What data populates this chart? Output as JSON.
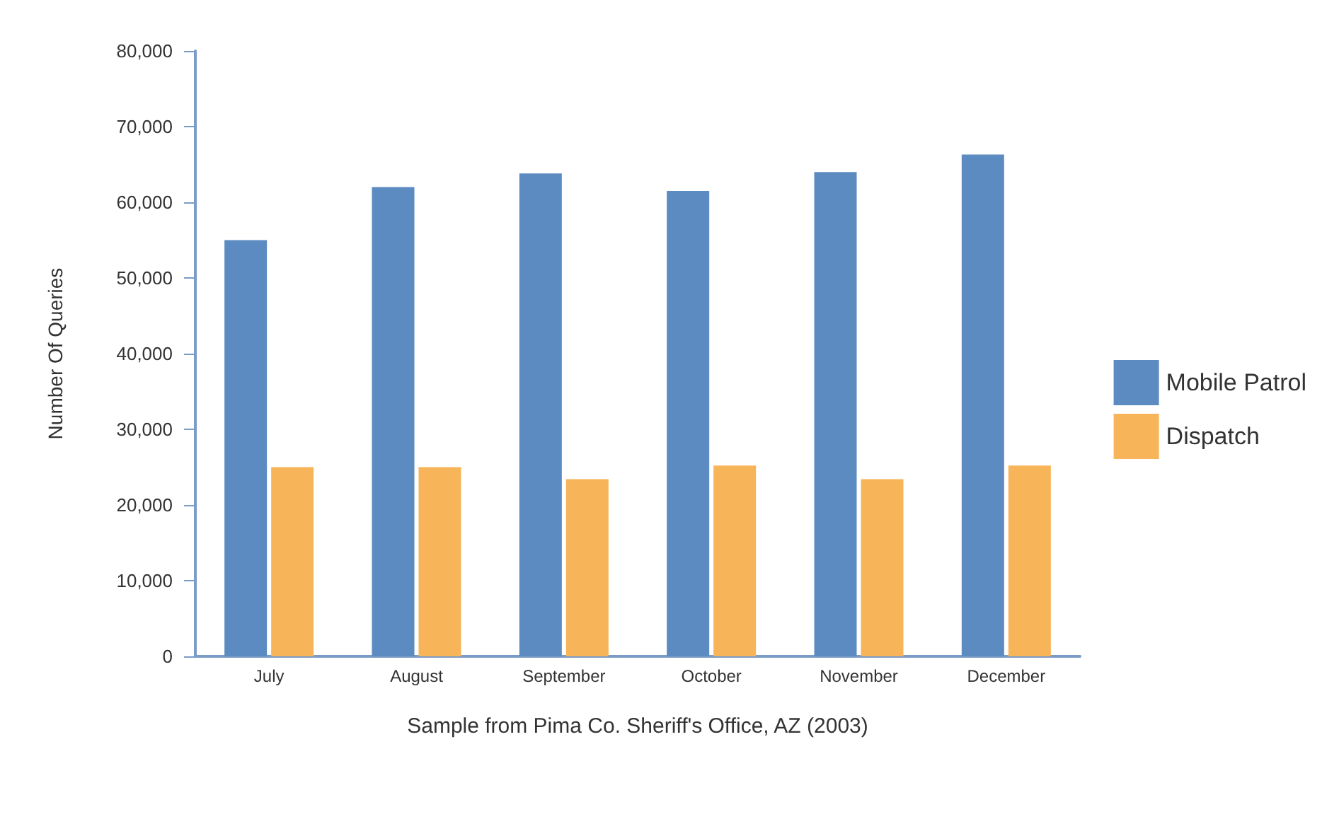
{
  "chart_data": {
    "type": "bar",
    "xlabel": "Sample from Pima Co. Sheriff's Office, AZ (2003)",
    "ylabel": "Number Of Queries",
    "categories": [
      "July",
      "August",
      "September",
      "October",
      "November",
      "December"
    ],
    "series": [
      {
        "name": "Mobile Patrol",
        "color": "#5b8bc1",
        "values": [
          55000,
          62000,
          63800,
          61500,
          64000,
          66300
        ]
      },
      {
        "name": "Dispatch",
        "color": "#f7b458",
        "values": [
          25000,
          25000,
          23400,
          25200,
          23400,
          25200
        ]
      }
    ],
    "ylim": [
      0,
      80000
    ],
    "yticks": [
      {
        "value": 0,
        "label": "0"
      },
      {
        "value": 10000,
        "label": "10,000"
      },
      {
        "value": 20000,
        "label": "20,000"
      },
      {
        "value": 30000,
        "label": "30,000"
      },
      {
        "value": 40000,
        "label": "40,000"
      },
      {
        "value": 50000,
        "label": "50,000"
      },
      {
        "value": 60000,
        "label": "60,000"
      },
      {
        "value": 70000,
        "label": "70,000"
      },
      {
        "value": 80000,
        "label": "80,000"
      }
    ],
    "grid": false,
    "legend": "right"
  }
}
